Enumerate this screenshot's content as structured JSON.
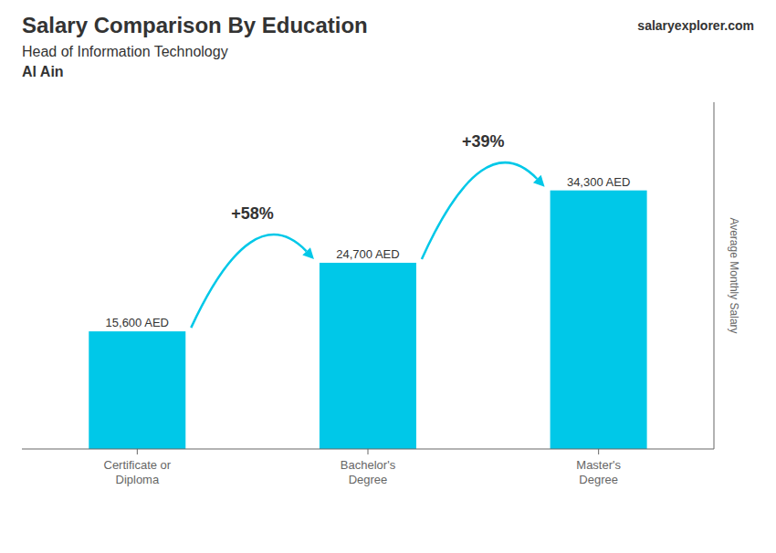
{
  "chart_data": {
    "type": "bar",
    "title": "Salary Comparison By Education",
    "subtitle": "Head of Information Technology",
    "annotations": [
      "Al Ain",
      "salaryexplorer.com",
      "+58%",
      "+39%"
    ],
    "ylabel": "Average Monthly Salary",
    "categories": [
      "Certificate or\nDiploma",
      "Bachelor's\nDegree",
      "Master's\nDegree"
    ],
    "values": [
      15600,
      24700,
      34300
    ],
    "value_labels": [
      "15,600 AED",
      "24,700 AED",
      "34,300 AED"
    ],
    "data_labels": true,
    "color": "#00c8e8",
    "ylim": [
      0,
      46000
    ],
    "grid": false,
    "tick_labels": "x"
  }
}
